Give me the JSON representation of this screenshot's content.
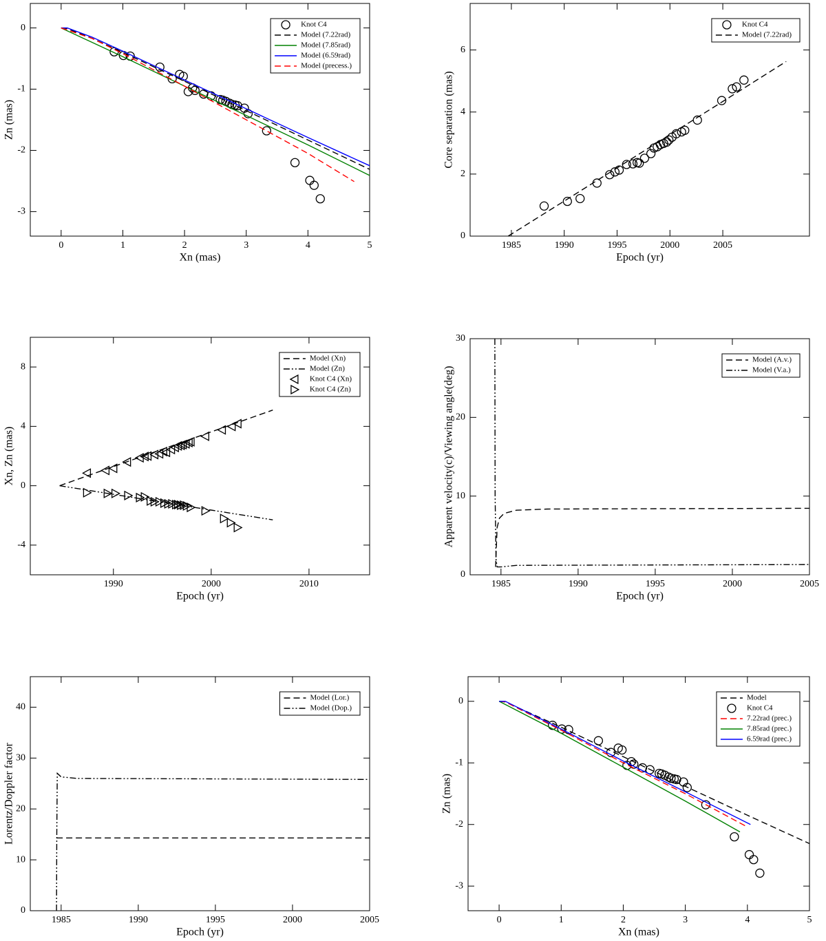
{
  "chart_data": [
    {
      "type": "line",
      "xlabel": "Xn (mas)",
      "ylabel": "Zn (mas)",
      "xlim": [
        -0.5,
        5
      ],
      "ylim": [
        -3.4,
        0.4
      ],
      "xticks": [
        0,
        1,
        2,
        3,
        4,
        5
      ],
      "yticks": [
        0,
        -1,
        -2,
        -3
      ],
      "legend": "upper right",
      "series": [
        {
          "name": "Knot C4",
          "color": "#000000",
          "marker": "circle",
          "x": [
            0.86,
            1.01,
            1.12,
            1.6,
            1.8,
            1.92,
            1.98,
            2.06,
            2.13,
            2.17,
            2.31,
            2.43,
            2.58,
            2.62,
            2.67,
            2.73,
            2.77,
            2.82,
            2.86,
            2.97,
            3.03,
            3.33,
            3.79,
            4.03,
            4.1,
            4.2
          ],
          "values": [
            -0.39,
            -0.45,
            -0.46,
            -0.64,
            -0.83,
            -0.76,
            -0.79,
            -1.04,
            -0.98,
            -1.02,
            -1.08,
            -1.11,
            -1.17,
            -1.18,
            -1.2,
            -1.23,
            -1.25,
            -1.26,
            -1.27,
            -1.31,
            -1.4,
            -1.68,
            -2.2,
            -2.49,
            -2.57,
            -2.79
          ]
        },
        {
          "name": "Model (7.22rad)",
          "color": "#000000",
          "style": "dashed",
          "x": [
            0,
            0.1,
            0.5,
            1,
            2,
            3,
            4,
            5
          ],
          "values": [
            0,
            -0.01,
            -0.17,
            -0.4,
            -0.87,
            -1.35,
            -1.83,
            -2.31
          ]
        },
        {
          "name": "Model (7.85rad)",
          "color": "#008000",
          "style": "solid",
          "x": [
            0,
            1,
            2,
            3,
            4,
            5
          ],
          "values": [
            0,
            -0.47,
            -0.95,
            -1.43,
            -1.91,
            -2.41
          ]
        },
        {
          "name": "Model (6.59rad)",
          "color": "#0000ff",
          "style": "solid",
          "x": [
            0,
            0.1,
            0.5,
            1,
            2,
            3,
            4,
            5
          ],
          "values": [
            0,
            0,
            -0.15,
            -0.38,
            -0.85,
            -1.32,
            -1.79,
            -2.25
          ]
        },
        {
          "name": "Model (precess.)",
          "color": "#ff0000",
          "style": "dashed",
          "x": [
            0,
            0.5,
            1,
            2,
            3,
            4,
            4.75
          ],
          "values": [
            0,
            -0.17,
            -0.42,
            -0.95,
            -1.5,
            -2.05,
            -2.51
          ]
        }
      ]
    },
    {
      "type": "line",
      "xlabel": "Epoch (yr)",
      "ylabel": "Core separation (mas)",
      "xlim": [
        1981.1,
        2013.2
      ],
      "ylim": [
        0,
        7.5
      ],
      "xticks": [
        1985,
        1990,
        1995,
        2000,
        2005
      ],
      "yticks": [
        0,
        2,
        4,
        6
      ],
      "legend": "upper right",
      "series": [
        {
          "name": "Knot C4",
          "color": "#000000",
          "marker": "circle",
          "x": [
            1988.1,
            1990.3,
            1991.5,
            1993.1,
            1994.3,
            1994.8,
            1995.2,
            1995.9,
            1996.5,
            1996.9,
            1997.1,
            1997.6,
            1998.2,
            1998.5,
            1998.8,
            1999.1,
            1999.4,
            1999.7,
            1999.9,
            2000.2,
            2000.6,
            2001.1,
            2001.4,
            2002.6,
            2004.9,
            2005.9,
            2006.3,
            2007
          ],
          "values": [
            0.97,
            1.12,
            1.21,
            1.71,
            1.98,
            2.07,
            2.13,
            2.31,
            2.33,
            2.37,
            2.35,
            2.51,
            2.66,
            2.84,
            2.88,
            2.95,
            2.99,
            3.03,
            3.1,
            3.19,
            3.3,
            3.36,
            3.41,
            3.74,
            4.37,
            4.75,
            4.81,
            5.03
          ]
        },
        {
          "name": "Model (7.22rad)",
          "color": "#000000",
          "style": "dashed",
          "x": [
            1984.7,
            1990,
            1995,
            2000,
            2005,
            2011
          ],
          "values": [
            0,
            1.13,
            2.2,
            3.27,
            4.34,
            5.63
          ]
        }
      ]
    },
    {
      "type": "line",
      "xlabel": "Epoch (yr)",
      "ylabel": "Xn, Zn (mas)",
      "xlim": [
        1981.5,
        2016.2
      ],
      "ylim": [
        -6,
        10
      ],
      "xticks": [
        1990,
        2000,
        2010
      ],
      "yticks": [
        -4,
        0,
        4,
        8
      ],
      "legend": "upper right",
      "series": [
        {
          "name": "Model (Xn)",
          "color": "#000000",
          "style": "dashed",
          "x": [
            1984.5,
            1990,
            1995,
            2000,
            2006.3
          ],
          "values": [
            0,
            1.29,
            2.46,
            3.63,
            5.1
          ]
        },
        {
          "name": "Model (Zn)",
          "color": "#000000",
          "style": "dashdotdot",
          "x": [
            1984.5,
            1990,
            1995,
            2000,
            2006.3
          ],
          "values": [
            0,
            -0.58,
            -1.11,
            -1.64,
            -2.3
          ]
        },
        {
          "name": "Knot C4 (Xn)",
          "color": "#000000",
          "marker": "triangle-left",
          "x": [
            1987.3,
            1989.2,
            1990,
            1991.4,
            1992.7,
            1993.2,
            1993.5,
            1994.2,
            1994.7,
            1995.1,
            1995.4,
            1995.9,
            1996.3,
            1996.6,
            1996.9,
            1997.1,
            1997.4,
            1997.7,
            1997.9,
            1999.4,
            2001.1,
            2002.1,
            2002.7
          ],
          "values": [
            0.85,
            1.03,
            1.17,
            1.6,
            1.88,
            1.97,
            2,
            2.1,
            2.15,
            2.3,
            2.25,
            2.44,
            2.58,
            2.68,
            2.72,
            2.77,
            2.82,
            2.91,
            2.96,
            3.33,
            3.76,
            3.99,
            4.18
          ]
        },
        {
          "name": "Knot C4 (Zn)",
          "color": "#000000",
          "marker": "triangle-right",
          "x": [
            1987.3,
            1989.4,
            1990.2,
            1991.5,
            1992.7,
            1993.2,
            1993.8,
            1994.2,
            1994.7,
            1995.2,
            1995.6,
            1996,
            1996.4,
            1996.6,
            1996.9,
            1997.2,
            1997.5,
            1997.9,
            1999.4,
            2001.3,
            2002,
            2002.7
          ],
          "values": [
            -0.47,
            -0.52,
            -0.52,
            -0.66,
            -0.8,
            -0.75,
            -1.03,
            -1.08,
            -1.08,
            -1.17,
            -1.22,
            -1.22,
            -1.27,
            -1.27,
            -1.31,
            -1.31,
            -1.36,
            -1.46,
            -1.69,
            -2.21,
            -2.49,
            -2.82
          ]
        }
      ]
    },
    {
      "type": "line",
      "xlabel": "Epoch (yr)",
      "ylabel": "Apparent velocity(c)/Viewing angle(deg)",
      "xlim": [
        1983,
        2005
      ],
      "ylim": [
        0,
        30
      ],
      "xticks": [
        1985,
        1990,
        1995,
        2000,
        2005
      ],
      "yticks": [
        0,
        10,
        20,
        30
      ],
      "legend": "upper right",
      "series": [
        {
          "name": "Model (A.v.)",
          "color": "#000000",
          "style": "dashed",
          "x": [
            1984.65,
            1984.75,
            1984.9,
            1985.2,
            1986,
            1988,
            1995,
            2005
          ],
          "values": [
            1,
            6,
            7.2,
            7.8,
            8.2,
            8.35,
            8.4,
            8.45
          ]
        },
        {
          "name": "Model (V.a.)",
          "color": "#000000",
          "style": "dashdotdot",
          "x": [
            1984.6,
            1984.62,
            1984.68,
            1984.75,
            1985,
            1986,
            2005
          ],
          "values": [
            30,
            10,
            2,
            1,
            1,
            1.2,
            1.3
          ]
        }
      ]
    },
    {
      "type": "line",
      "xlabel": "Epoch (yr)",
      "ylabel": "Lorentz/Doppler factor",
      "xlim": [
        1983,
        2005
      ],
      "ylim": [
        0,
        46
      ],
      "xticks": [
        1985,
        1990,
        1995,
        2000,
        2005
      ],
      "yticks": [
        0,
        10,
        20,
        30,
        40
      ],
      "legend": "upper right",
      "series": [
        {
          "name": "Model (Lor.)",
          "color": "#000000",
          "style": "dashed",
          "x": [
            1984.7,
            2005
          ],
          "values": [
            14.3,
            14.3
          ]
        },
        {
          "name": "Model (Dop.)",
          "color": "#000000",
          "style": "dashdotdot",
          "x": [
            1984.7,
            1984.72,
            1984.75,
            1985,
            1986,
            2005
          ],
          "values": [
            0,
            15,
            27,
            26.3,
            26,
            25.8
          ]
        }
      ]
    },
    {
      "type": "line",
      "xlabel": "Xn (mas)",
      "ylabel": "Zn (mas)",
      "xlim": [
        -0.5,
        5
      ],
      "ylim": [
        -3.4,
        0.4
      ],
      "xticks": [
        0,
        1,
        2,
        3,
        4,
        5
      ],
      "yticks": [
        0,
        -1,
        -2,
        -3
      ],
      "legend": "upper right",
      "series": [
        {
          "name": "Model",
          "color": "#000000",
          "style": "dashed",
          "x": [
            0,
            0.1,
            1,
            2,
            3,
            4,
            5
          ],
          "values": [
            0,
            -0.01,
            -0.42,
            -0.9,
            -1.38,
            -1.85,
            -2.31
          ]
        },
        {
          "name": "Knot C4",
          "color": "#000000",
          "marker": "circle",
          "x": [
            0.86,
            1.01,
            1.12,
            1.6,
            1.8,
            1.92,
            1.98,
            2.06,
            2.13,
            2.17,
            2.31,
            2.43,
            2.58,
            2.62,
            2.67,
            2.73,
            2.77,
            2.82,
            2.86,
            2.97,
            3.03,
            3.33,
            3.79,
            4.03,
            4.1,
            4.2
          ],
          "values": [
            -0.39,
            -0.45,
            -0.46,
            -0.64,
            -0.83,
            -0.76,
            -0.79,
            -1.04,
            -0.98,
            -1.02,
            -1.08,
            -1.11,
            -1.17,
            -1.18,
            -1.2,
            -1.23,
            -1.25,
            -1.26,
            -1.27,
            -1.31,
            -1.4,
            -1.68,
            -2.2,
            -2.49,
            -2.57,
            -2.79
          ]
        },
        {
          "name": "7.22rad (prec.)",
          "color": "#ff0000",
          "style": "dashed",
          "x": [
            0,
            0.1,
            1,
            2,
            3,
            3.98
          ],
          "values": [
            0,
            -0.01,
            -0.47,
            -1,
            -1.5,
            -2.03
          ]
        },
        {
          "name": "7.85rad (prec.)",
          "color": "#008000",
          "style": "solid",
          "x": [
            0,
            1,
            2,
            3,
            3.88
          ],
          "values": [
            0,
            -0.52,
            -1.07,
            -1.62,
            -2.12
          ]
        },
        {
          "name": "6.59rad (prec.)",
          "color": "#0000ff",
          "style": "solid",
          "x": [
            0,
            0.1,
            1,
            2,
            3,
            4.05
          ],
          "values": [
            0,
            0,
            -0.45,
            -0.97,
            -1.47,
            -2
          ]
        }
      ]
    }
  ]
}
